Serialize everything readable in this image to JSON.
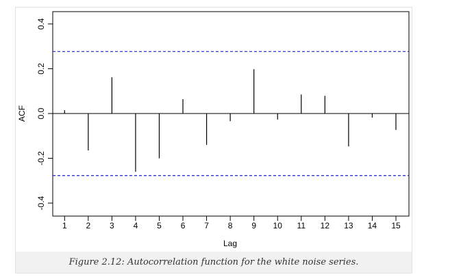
{
  "chart_data": {
    "type": "spike",
    "caption": "Figure 2.12: Autocorrelation function for the white noise series.",
    "x_label": "Lag",
    "y_label": "ACF",
    "x": [
      1,
      2,
      3,
      4,
      5,
      6,
      7,
      8,
      9,
      10,
      11,
      12,
      13,
      14,
      15
    ],
    "values": [
      0.015,
      -0.165,
      0.162,
      -0.26,
      -0.2,
      0.064,
      -0.14,
      -0.034,
      0.198,
      -0.027,
      0.085,
      0.079,
      -0.147,
      -0.018,
      -0.073
    ],
    "color": "#000000",
    "ci_lines": [
      0.277,
      -0.277
    ],
    "ci_color": "#1f1fd0",
    "xlim": [
      0.5,
      15.55
    ],
    "xticks": [
      1,
      2,
      3,
      4,
      5,
      6,
      7,
      8,
      9,
      10,
      11,
      12,
      13,
      14,
      15
    ],
    "ylim": [
      -0.458,
      0.455
    ],
    "yticks": [
      -0.4,
      -0.2,
      {
        "value": 0,
        "label": "0.0"
      },
      0.2,
      0.4
    ]
  }
}
